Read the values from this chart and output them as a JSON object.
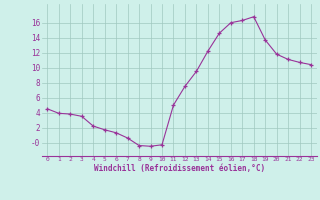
{
  "x": [
    0,
    1,
    2,
    3,
    4,
    5,
    6,
    7,
    8,
    9,
    10,
    11,
    12,
    13,
    14,
    15,
    16,
    17,
    18,
    19,
    20,
    21,
    22,
    23
  ],
  "y": [
    4.5,
    3.9,
    3.8,
    3.5,
    2.2,
    1.7,
    1.3,
    0.6,
    -0.4,
    -0.5,
    -0.3,
    5.0,
    7.5,
    9.5,
    12.2,
    14.6,
    16.0,
    16.3,
    16.8,
    13.7,
    11.8,
    11.1,
    10.7,
    10.4
  ],
  "line_color": "#993399",
  "marker_color": "#993399",
  "bg_color": "#cff0ea",
  "grid_color": "#a0c8c0",
  "xlabel": "Windchill (Refroidissement éolien,°C)",
  "xlabel_color": "#993399",
  "tick_color": "#993399",
  "yticks": [
    0,
    2,
    4,
    6,
    8,
    10,
    12,
    14,
    16
  ],
  "ytick_labels": [
    "-0",
    "2",
    "4",
    "6",
    "8",
    "10",
    "12",
    "14",
    "16"
  ],
  "ylim": [
    -1.8,
    18.5
  ],
  "xlim": [
    -0.5,
    23.5
  ]
}
